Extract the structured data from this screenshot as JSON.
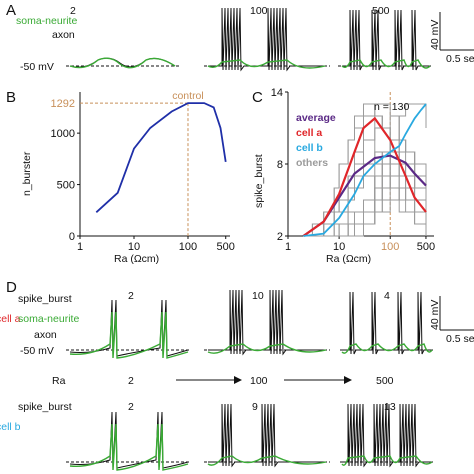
{
  "panels": {
    "a": "A",
    "b": "B",
    "c": "C",
    "d": "D"
  },
  "panel_a": {
    "legend_soma": "soma-neurite",
    "legend_axon": "axon",
    "ra_values": [
      "2",
      "100",
      "500"
    ],
    "baseline_label": "-50 mV",
    "scale_v": "40 mV",
    "scale_t": "0.5 sec"
  },
  "panel_d": {
    "cell_a_label": "cell a",
    "cell_b_label": "cell b",
    "spike_burst_label": "spike_burst",
    "legend_soma": "soma-neurite",
    "legend_axon": "axon",
    "baseline_label": "-50 mV",
    "ra_label": "Ra",
    "ra_values": [
      "2",
      "100",
      "500"
    ],
    "cell_a_spike_burst": [
      "2",
      "10",
      "4"
    ],
    "cell_b_spike_burst": [
      "2",
      "9",
      "13"
    ],
    "scale_v": "40 mV",
    "scale_t": "0.5 sec"
  },
  "colors": {
    "soma": "#3aaa35",
    "axon": "#111111",
    "control": "#c8905a",
    "average": "#5b2a86",
    "cell_a": "#e0262a",
    "cell_b": "#29a9e0",
    "others": "#9b9b9b",
    "b_curve": "#1f2fa8"
  },
  "chart_data": [
    {
      "type": "line",
      "panel": "B",
      "ylabel": "n_burster",
      "xlabel": "Ra (Ωcm)",
      "x_scale": "log",
      "xlim": [
        1,
        600
      ],
      "ylim": [
        0,
        1400
      ],
      "xticks": [
        "1",
        "10",
        "100",
        "500"
      ],
      "yticks": [
        "0",
        "500",
        "1000"
      ],
      "annotation_value": "1292",
      "annotation_label": "control",
      "control_x": 100,
      "series": [
        {
          "x": [
            2,
            5,
            10,
            20,
            50,
            100,
            200,
            300,
            400,
            500
          ],
          "y": [
            230,
            420,
            850,
            1050,
            1210,
            1292,
            1292,
            1250,
            1050,
            720
          ]
        }
      ]
    },
    {
      "type": "line",
      "panel": "C",
      "ylabel": "spike_burst",
      "xlabel": "Ra (Ωcm)",
      "x_scale": "log",
      "xlim": [
        1,
        600
      ],
      "ylim": [
        2,
        14
      ],
      "xticks": [
        "1",
        "10",
        "100",
        "500"
      ],
      "yticks": [
        "2",
        "8",
        "14"
      ],
      "annotation": "n = 130",
      "legend": [
        "average",
        "cell a",
        "cell b",
        "others"
      ],
      "series": [
        {
          "name": "average",
          "x": [
            2,
            5,
            10,
            20,
            50,
            100,
            200,
            300,
            500
          ],
          "y": [
            2,
            3.2,
            5.2,
            7.2,
            8.5,
            8.7,
            8.1,
            7.2,
            6.2
          ]
        },
        {
          "name": "cell a",
          "x": [
            2,
            5,
            10,
            20,
            30,
            50,
            100,
            200,
            300,
            500
          ],
          "y": [
            2,
            3.2,
            5.5,
            9,
            11,
            11.8,
            10,
            7,
            5.2,
            4
          ]
        },
        {
          "name": "cell b",
          "x": [
            2,
            5,
            10,
            20,
            30,
            50,
            100,
            150,
            200,
            300,
            400,
            500
          ],
          "y": [
            2,
            2.2,
            3.5,
            5.5,
            7,
            8,
            9,
            9.5,
            10.5,
            11.8,
            12.5,
            13
          ]
        }
      ]
    }
  ]
}
